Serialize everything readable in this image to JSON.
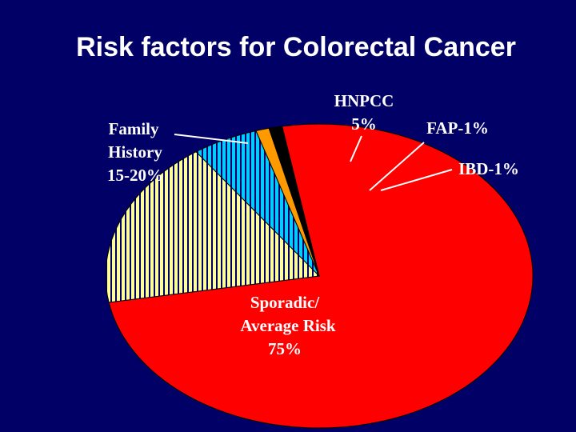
{
  "slide": {
    "title": "Risk factors for Colorectal Cancer",
    "background": "#000066"
  },
  "chart_data": {
    "type": "pie",
    "title": "Risk factors for Colorectal Cancer",
    "slices": [
      {
        "name": "Sporadic/ Average Risk",
        "value": 75,
        "label_lines": [
          "Sporadic/",
          "Average Risk",
          "75%"
        ],
        "color": "#ff0000",
        "pattern": "solid"
      },
      {
        "name": "Family History",
        "value": 18,
        "label_lines": [
          "Family",
          "History",
          "15-20%"
        ],
        "color": "#ffff99",
        "pattern": "stripes-navy"
      },
      {
        "name": "HNPCC",
        "value": 5,
        "label_lines": [
          "HNPCC",
          "5%"
        ],
        "color": "#00ccff",
        "pattern": "stripes-navy"
      },
      {
        "name": "FAP",
        "value": 1,
        "label_lines": [
          "FAP-1%"
        ],
        "color": "#ff9900",
        "pattern": "solid"
      },
      {
        "name": "IBD",
        "value": 1,
        "label_lines": [
          "IBD-1%"
        ],
        "color": "#000000",
        "pattern": "solid"
      }
    ]
  }
}
